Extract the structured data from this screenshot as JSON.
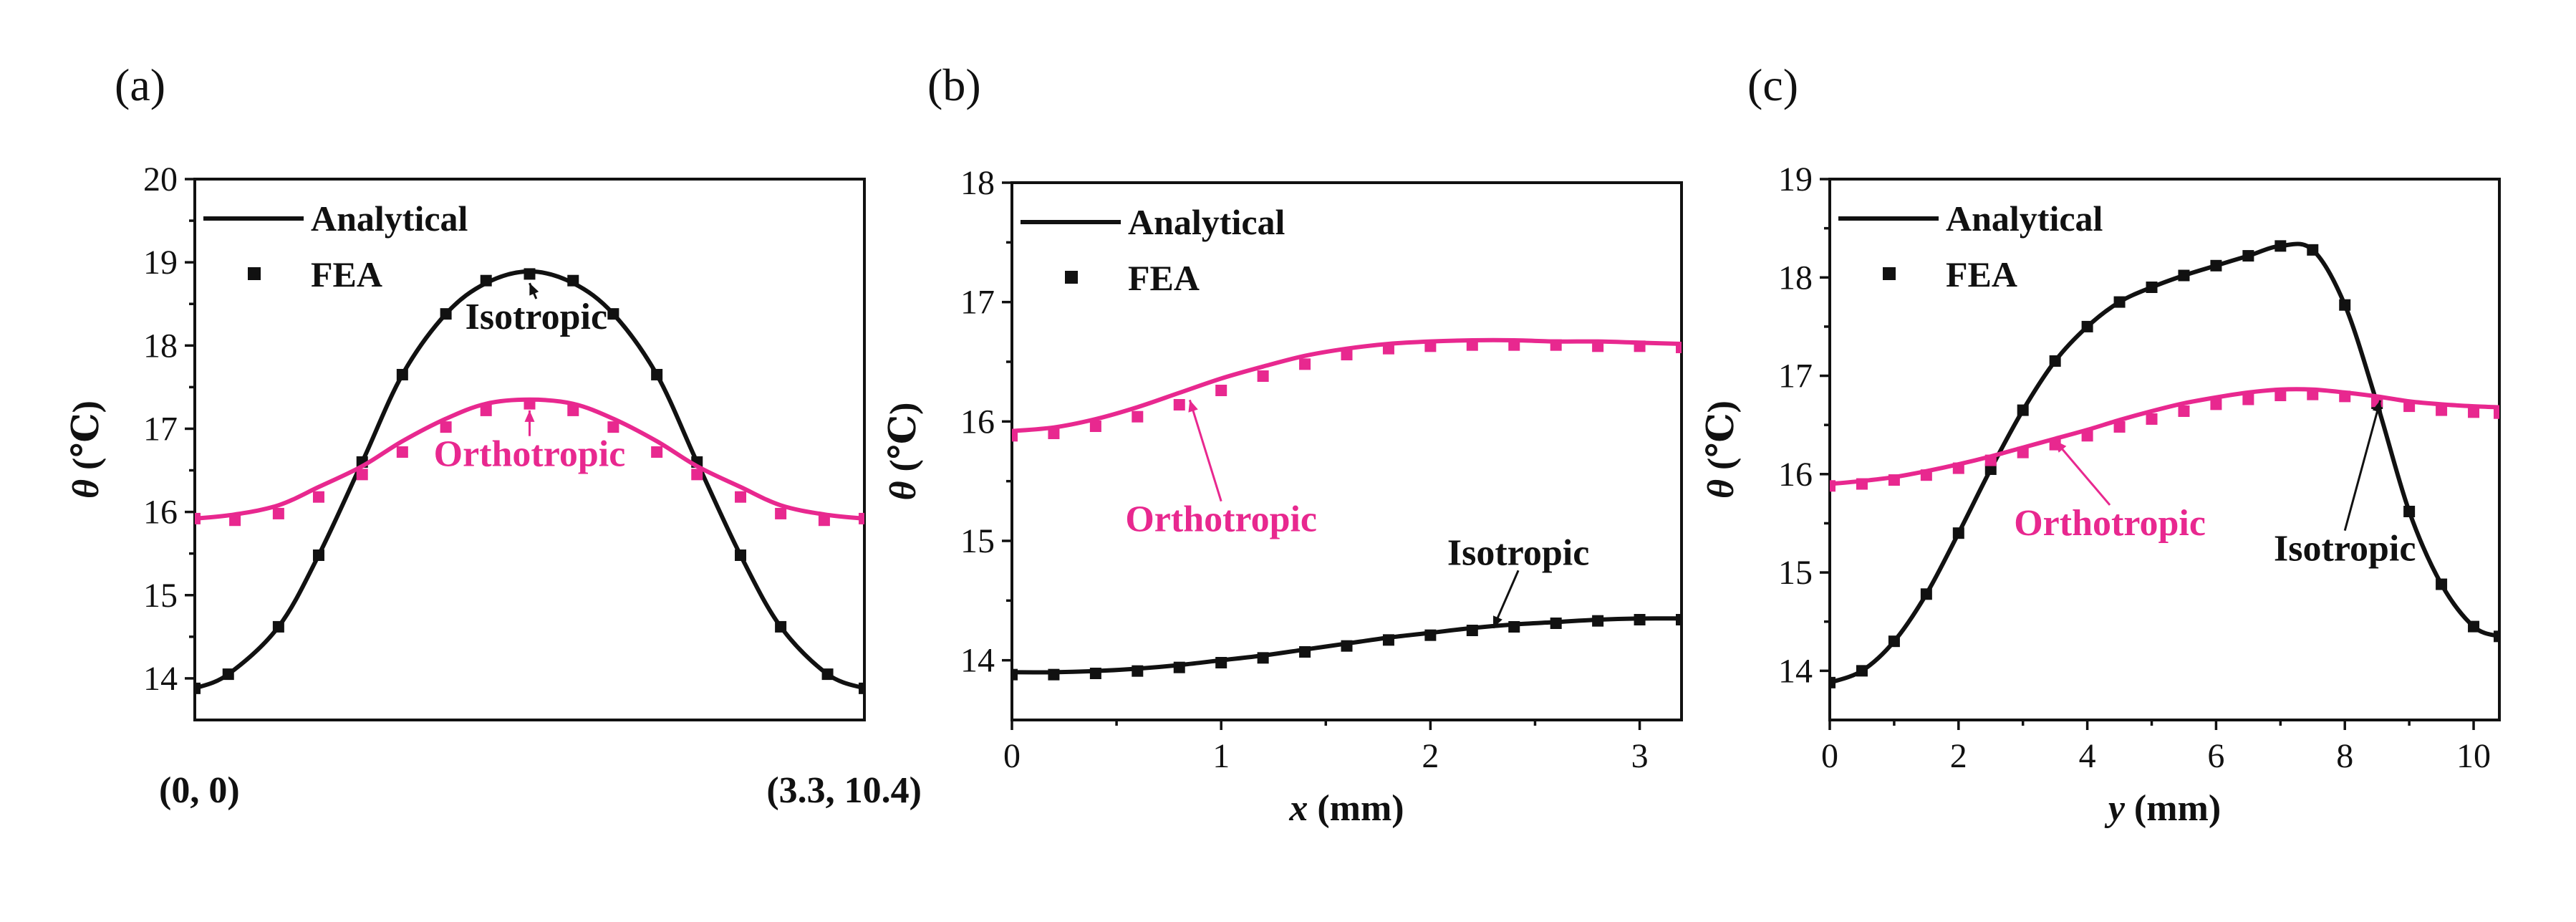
{
  "figure": {
    "colors": {
      "isotropic": "#111111",
      "orthotropic": "#e8288f"
    }
  },
  "chart_data": [
    {
      "type": "line",
      "panel": "(a)",
      "title": "",
      "xlabel": "",
      "ylabel": "θ (℃)",
      "xlim": [
        0,
        1
      ],
      "ylim": [
        13.5,
        20
      ],
      "yticks": [
        14,
        15,
        16,
        17,
        18,
        19,
        20
      ],
      "xticks": [],
      "corner_labels": {
        "start": "(0, 0)",
        "end": "(3.3, 10.4)"
      },
      "legend": {
        "location": "top-left",
        "line_label": "Analytical",
        "marker_label": "FEA"
      },
      "series": [
        {
          "name": "Isotropic",
          "color": "#111111",
          "x": [
            0.0,
            0.05,
            0.125,
            0.185,
            0.25,
            0.31,
            0.375,
            0.435,
            0.5,
            0.565,
            0.625,
            0.69,
            0.75,
            0.815,
            0.875,
            0.945,
            1.0
          ],
          "analytical": [
            13.88,
            14.05,
            14.62,
            15.48,
            16.6,
            17.65,
            18.38,
            18.75,
            18.89,
            18.75,
            18.38,
            17.65,
            16.6,
            15.48,
            14.62,
            14.05,
            13.88
          ],
          "fea": [
            13.88,
            14.05,
            14.62,
            15.48,
            16.6,
            17.65,
            18.38,
            18.78,
            18.86,
            18.78,
            18.38,
            17.65,
            16.6,
            15.48,
            14.62,
            14.05,
            13.88
          ]
        },
        {
          "name": "Orthotropic",
          "color": "#e8288f",
          "x": [
            0.0,
            0.06,
            0.125,
            0.185,
            0.25,
            0.31,
            0.375,
            0.435,
            0.5,
            0.565,
            0.625,
            0.69,
            0.75,
            0.815,
            0.875,
            0.94,
            1.0
          ],
          "analytical": [
            15.92,
            15.97,
            16.08,
            16.3,
            16.55,
            16.85,
            17.12,
            17.3,
            17.35,
            17.3,
            17.12,
            16.85,
            16.55,
            16.3,
            16.08,
            15.97,
            15.92
          ],
          "fea": [
            15.92,
            15.9,
            15.98,
            16.18,
            16.45,
            16.72,
            17.02,
            17.22,
            17.3,
            17.22,
            17.02,
            16.72,
            16.45,
            16.18,
            15.98,
            15.9,
            15.92
          ]
        }
      ],
      "annotations": [
        {
          "text": "Isotropic",
          "color": "#111111",
          "target_x": 0.5,
          "target_y": 18.75,
          "text_x": 0.51,
          "text_y": 18.2
        },
        {
          "text": "Orthotropic",
          "color": "#e8288f",
          "target_x": 0.5,
          "target_y": 17.22,
          "text_x": 0.5,
          "text_y": 16.55
        }
      ]
    },
    {
      "type": "line",
      "panel": "(b)",
      "title": "",
      "xlabel": "x (mm)",
      "ylabel": "θ (℃)",
      "xlim": [
        0,
        3.2
      ],
      "ylim": [
        13.5,
        18
      ],
      "yticks": [
        14,
        15,
        16,
        17,
        18
      ],
      "xticks": [
        0,
        1,
        2,
        3
      ],
      "legend": {
        "location": "top-left",
        "line_label": "Analytical",
        "marker_label": "FEA"
      },
      "series": [
        {
          "name": "Orthotropic",
          "color": "#e8288f",
          "x": [
            0,
            0.2,
            0.4,
            0.6,
            0.8,
            1.0,
            1.2,
            1.4,
            1.6,
            1.8,
            2.0,
            2.2,
            2.4,
            2.6,
            2.8,
            3.0,
            3.2
          ],
          "analytical": [
            15.92,
            15.95,
            16.02,
            16.12,
            16.24,
            16.36,
            16.46,
            16.55,
            16.61,
            16.65,
            16.67,
            16.68,
            16.68,
            16.67,
            16.67,
            16.66,
            16.65
          ],
          "fea": [
            15.88,
            15.9,
            15.96,
            16.04,
            16.14,
            16.26,
            16.38,
            16.48,
            16.56,
            16.61,
            16.63,
            16.64,
            16.64,
            16.64,
            16.63,
            16.63,
            16.62
          ]
        },
        {
          "name": "Isotropic",
          "color": "#111111",
          "x": [
            0,
            0.2,
            0.4,
            0.6,
            0.8,
            1.0,
            1.2,
            1.4,
            1.6,
            1.8,
            2.0,
            2.2,
            2.4,
            2.6,
            2.8,
            3.0,
            3.2
          ],
          "analytical": [
            13.9,
            13.9,
            13.91,
            13.93,
            13.96,
            14.0,
            14.04,
            14.09,
            14.14,
            14.19,
            14.23,
            14.27,
            14.3,
            14.32,
            14.34,
            14.35,
            14.35
          ],
          "fea": [
            13.88,
            13.88,
            13.89,
            13.91,
            13.94,
            13.98,
            14.02,
            14.07,
            14.12,
            14.17,
            14.21,
            14.25,
            14.28,
            14.31,
            14.33,
            14.34,
            14.34
          ]
        }
      ],
      "annotations": [
        {
          "text": "Orthotropic",
          "color": "#e8288f",
          "target_x": 0.85,
          "target_y": 16.18,
          "text_x": 1.0,
          "text_y": 15.08
        },
        {
          "text": "Isotropic",
          "color": "#111111",
          "target_x": 2.3,
          "target_y": 14.27,
          "text_x": 2.42,
          "text_y": 14.8
        }
      ]
    },
    {
      "type": "line",
      "panel": "(c)",
      "title": "",
      "xlabel": "y (mm)",
      "ylabel": "θ (℃)",
      "xlim": [
        0,
        10.4
      ],
      "ylim": [
        13.5,
        19
      ],
      "yticks": [
        14,
        15,
        16,
        17,
        18,
        19
      ],
      "xticks": [
        0,
        2,
        4,
        6,
        8,
        10
      ],
      "legend": {
        "location": "top-left",
        "line_label": "Analytical",
        "marker_label": "FEA"
      },
      "series": [
        {
          "name": "Isotropic",
          "color": "#111111",
          "x": [
            0,
            0.5,
            1.0,
            1.5,
            2.0,
            2.5,
            3.0,
            3.5,
            4.0,
            4.5,
            5.0,
            5.5,
            6.0,
            6.5,
            7.0,
            7.5,
            8.0,
            8.5,
            9.0,
            9.5,
            10.0,
            10.4
          ],
          "analytical": [
            13.88,
            14.0,
            14.3,
            14.78,
            15.4,
            16.05,
            16.65,
            17.15,
            17.5,
            17.75,
            17.9,
            18.02,
            18.12,
            18.22,
            18.32,
            18.28,
            17.72,
            16.72,
            15.62,
            14.88,
            14.45,
            14.35
          ],
          "fea": [
            13.88,
            14.0,
            14.3,
            14.78,
            15.4,
            16.05,
            16.65,
            17.15,
            17.5,
            17.75,
            17.9,
            18.02,
            18.12,
            18.22,
            18.32,
            18.28,
            17.72,
            16.72,
            15.62,
            14.88,
            14.45,
            14.35
          ]
        },
        {
          "name": "Orthotropic",
          "color": "#e8288f",
          "x": [
            0,
            0.5,
            1.0,
            1.5,
            2.0,
            2.5,
            3.0,
            3.5,
            4.0,
            4.5,
            5.0,
            5.5,
            6.0,
            6.5,
            7.0,
            7.5,
            8.0,
            8.5,
            9.0,
            9.5,
            10.0,
            10.4
          ],
          "analytical": [
            15.9,
            15.93,
            15.97,
            16.03,
            16.1,
            16.18,
            16.27,
            16.36,
            16.45,
            16.55,
            16.64,
            16.72,
            16.78,
            16.83,
            16.86,
            16.86,
            16.83,
            16.79,
            16.74,
            16.71,
            16.69,
            16.68
          ],
          "fea": [
            15.88,
            15.9,
            15.94,
            15.99,
            16.06,
            16.14,
            16.22,
            16.3,
            16.39,
            16.48,
            16.56,
            16.64,
            16.71,
            16.76,
            16.8,
            16.81,
            16.79,
            16.74,
            16.69,
            16.65,
            16.63,
            16.62
          ]
        }
      ],
      "annotations": [
        {
          "text": "Orthotropic",
          "color": "#e8288f",
          "target_x": 3.5,
          "target_y": 16.34,
          "text_x": 4.35,
          "text_y": 15.38
        },
        {
          "text": "Isotropic",
          "color": "#111111",
          "target_x": 8.55,
          "target_y": 16.75,
          "text_x": 8.0,
          "text_y": 15.12
        }
      ]
    }
  ]
}
